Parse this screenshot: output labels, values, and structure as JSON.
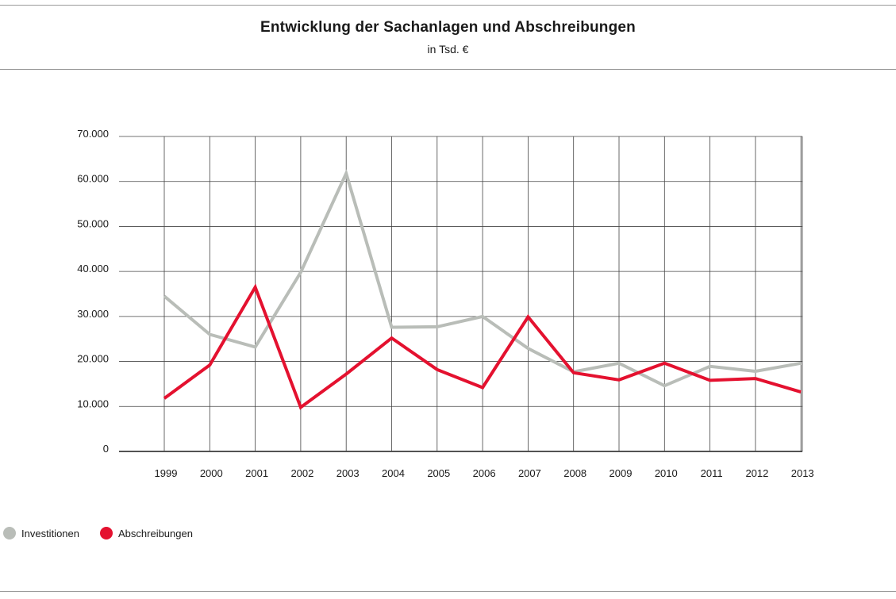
{
  "title": "Entwicklung der Sachanlagen und Abschreibungen",
  "subtitle": "in Tsd. €",
  "chart_data": {
    "type": "line",
    "categories": [
      "1999",
      "2000",
      "2001",
      "2002",
      "2003",
      "2004",
      "2005",
      "2006",
      "2007",
      "2008",
      "2009",
      "2010",
      "2011",
      "2012",
      "2013"
    ],
    "y_tick_labels": [
      "0",
      "10.000",
      "20.000",
      "30.000",
      "40.000",
      "50.000",
      "60.000",
      "70.000"
    ],
    "y_ticks": [
      0,
      10000,
      20000,
      30000,
      40000,
      50000,
      60000,
      70000
    ],
    "ylim": [
      0,
      70000
    ],
    "grid": true,
    "legend_position": "bottom-left",
    "series": [
      {
        "name": "Investitionen",
        "color": "#b9bdb8",
        "values": [
          34500,
          26000,
          23200,
          39800,
          61800,
          27600,
          27700,
          30000,
          22900,
          17700,
          19600,
          14600,
          18900,
          17800,
          19600
        ]
      },
      {
        "name": "Abschreibungen",
        "color": "#e4112f",
        "values": [
          11800,
          19200,
          36500,
          9800,
          17200,
          25200,
          18200,
          14200,
          29900,
          17500,
          15900,
          19600,
          15800,
          16200,
          13200
        ]
      }
    ]
  }
}
